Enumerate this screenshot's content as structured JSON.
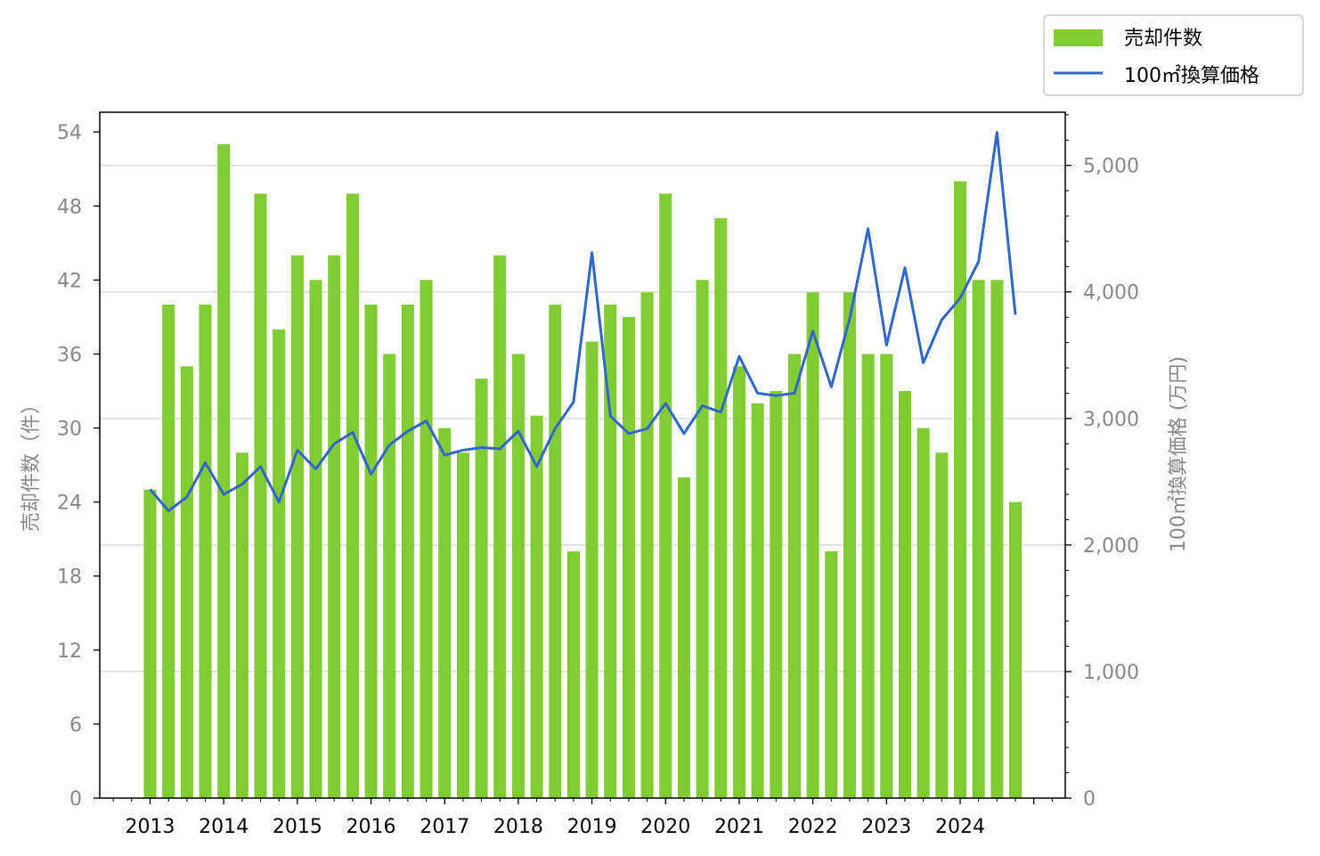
{
  "chart_data": {
    "type": "bar",
    "x_tick_labels": [
      "2013",
      "2014",
      "2015",
      "2016",
      "2017",
      "2018",
      "2019",
      "2020",
      "2021",
      "2022",
      "2023",
      "2024"
    ],
    "series": [
      {
        "name": "売却件数",
        "type": "bar",
        "axis": "left",
        "color": "#80cc33",
        "values": [
          25,
          40,
          35,
          40,
          53,
          28,
          49,
          38,
          44,
          42,
          44,
          49,
          40,
          36,
          40,
          42,
          30,
          28,
          34,
          44,
          36,
          31,
          40,
          20,
          37,
          40,
          39,
          41,
          49,
          26,
          42,
          47,
          35,
          32,
          33,
          36,
          41,
          20,
          41,
          36,
          36,
          33,
          30,
          28,
          50,
          42,
          42,
          24
        ]
      },
      {
        "name": "100㎡換算価格",
        "type": "line",
        "axis": "right",
        "color": "#3366cc",
        "values": [
          2440,
          2270,
          2380,
          2650,
          2400,
          2480,
          2620,
          2340,
          2750,
          2600,
          2800,
          2890,
          2560,
          2790,
          2900,
          2980,
          2710,
          2750,
          2770,
          2760,
          2900,
          2620,
          2920,
          3130,
          4310,
          3020,
          2880,
          2920,
          3120,
          2880,
          3100,
          3050,
          3490,
          3200,
          3180,
          3200,
          3690,
          3250,
          3790,
          4500,
          3580,
          4190,
          3440,
          3780,
          3950,
          4240,
          5260,
          3820
        ]
      }
    ],
    "y_left": {
      "label": "売却件数（件）",
      "ticks": [
        0,
        6,
        12,
        18,
        24,
        30,
        36,
        42,
        48,
        54
      ],
      "range": [
        0,
        55.6
      ]
    },
    "y_right": {
      "label": "100㎡換算価格 (万円)",
      "ticks": [
        0,
        1000,
        2000,
        3000,
        4000,
        5000
      ],
      "tick_labels": [
        "0",
        "1,000",
        "2,000",
        "3,000",
        "4,000",
        "5,000"
      ],
      "range": [
        0,
        5420
      ]
    },
    "grid": "horizontal",
    "legend": "top-right"
  }
}
